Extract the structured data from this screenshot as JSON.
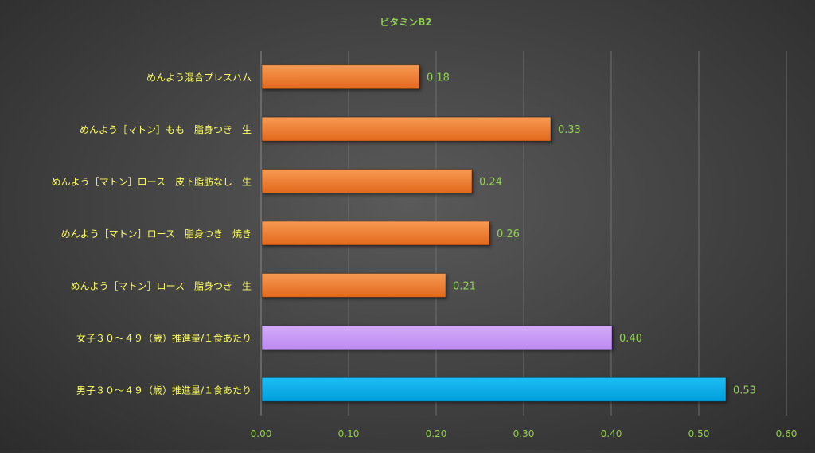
{
  "chart_data": {
    "type": "bar",
    "orientation": "horizontal",
    "title": "ビタミンB2",
    "xlabel": "",
    "ylabel": "",
    "xlim": [
      0,
      0.6
    ],
    "x_ticks": [
      "0.00",
      "0.10",
      "0.20",
      "0.30",
      "0.40",
      "0.50",
      "0.60"
    ],
    "grid": true,
    "legend": "none",
    "categories": [
      "めんよう混合プレスハム",
      "めんよう［マトン］もも　脂身つき　生",
      "めんよう［マトン］ロース　皮下脂肪なし　生",
      "めんよう［マトン］ロース　脂身つき　焼き",
      "めんよう［マトン］ロース　脂身つき　生",
      "女子３０～４９（歳）推進量/１食あたり",
      "男子３０～４９（歳）推進量/１食あたり"
    ],
    "values": [
      0.18,
      0.33,
      0.24,
      0.26,
      0.21,
      0.4,
      0.53
    ],
    "value_labels": [
      "0.18",
      "0.33",
      "0.24",
      "0.26",
      "0.21",
      "0.40",
      "0.53"
    ],
    "colors": {
      "food_bar": "#f07f32",
      "female_bar": "#c899f5",
      "male_bar": "#00b0f0",
      "title": "#92d050",
      "category_label": "#ffff66",
      "value_label": "#92d050",
      "tick_label": "#92d050",
      "grid": "#6e6e6e"
    },
    "bar_colors": [
      "food_bar",
      "food_bar",
      "food_bar",
      "food_bar",
      "food_bar",
      "female_bar",
      "male_bar"
    ]
  }
}
